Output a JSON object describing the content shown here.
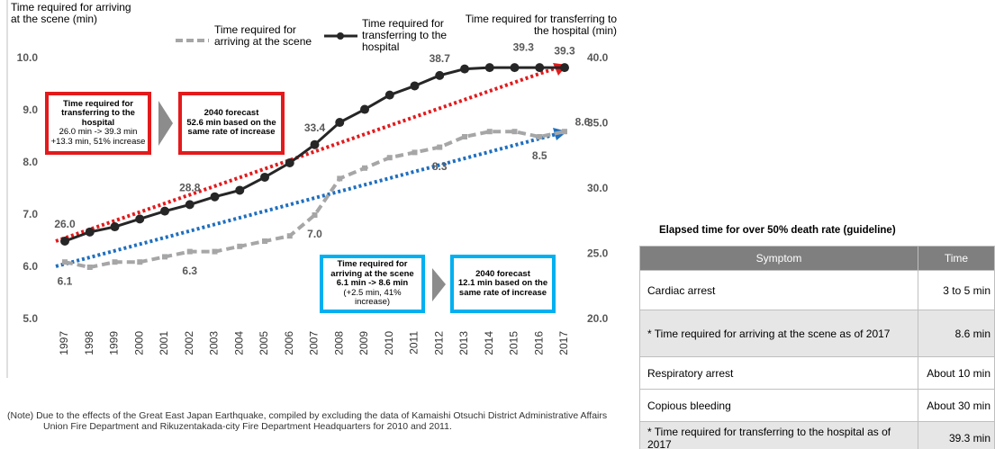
{
  "chart_data": {
    "type": "line",
    "y_axis_label": "Time required for arriving at the scene (min)",
    "y2_axis_label": "Time required for transferring to the hospital (min)",
    "categories": [
      "1997",
      "1998",
      "1999",
      "2000",
      "2001",
      "2002",
      "2003",
      "2004",
      "2005",
      "2006",
      "2007",
      "2008",
      "2009",
      "2010",
      "2011",
      "2012",
      "2013",
      "2014",
      "2015",
      "2016",
      "2017"
    ],
    "series": [
      {
        "name": "Time required for arriving at the scene",
        "color": "#a6a6a6",
        "axis": "y",
        "values": [
          6.1,
          6.0,
          6.1,
          6.1,
          6.2,
          6.3,
          6.3,
          6.4,
          6.5,
          6.6,
          7.0,
          7.7,
          7.9,
          8.1,
          8.2,
          8.3,
          8.5,
          8.6,
          8.6,
          8.5,
          8.6
        ],
        "value_labels": [
          "6.1",
          null,
          null,
          null,
          null,
          "6.3",
          null,
          null,
          null,
          null,
          "7.0",
          null,
          null,
          null,
          null,
          "8.3",
          null,
          null,
          null,
          "8.5",
          "8.6"
        ]
      },
      {
        "name": "Time required for transferring to the hospital",
        "color": "#262626",
        "axis": "y2",
        "values": [
          26.0,
          26.7,
          27.1,
          27.7,
          28.3,
          28.8,
          29.4,
          29.9,
          30.9,
          32.0,
          33.4,
          35.1,
          36.1,
          37.2,
          37.9,
          38.7,
          39.2,
          39.3,
          39.3,
          39.3,
          39.3
        ],
        "value_labels": [
          "26.0",
          null,
          null,
          null,
          null,
          "28.8",
          null,
          null,
          null,
          null,
          "33.4",
          null,
          null,
          null,
          null,
          "38.7",
          null,
          null,
          null,
          "39.3",
          "39.3"
        ]
      }
    ],
    "ylim": [
      5,
      10
    ],
    "yticks": [
      {
        "value": 5,
        "label": "5.0"
      },
      {
        "value": 6,
        "label": "6.0"
      },
      {
        "value": 7,
        "label": "7.0"
      },
      {
        "value": 8,
        "label": "8.0"
      },
      {
        "value": 9,
        "label": "9.0"
      },
      {
        "value": 10,
        "label": "10.0"
      }
    ],
    "y2lim": [
      20,
      40
    ],
    "y2ticks": [
      {
        "value": 20,
        "label": "20.0"
      },
      {
        "value": 25,
        "label": "25.0"
      },
      {
        "value": 30,
        "label": "30.0"
      },
      {
        "value": 35,
        "label": "35.0"
      },
      {
        "value": 40,
        "label": "40.0"
      }
    ],
    "annotations": [
      [
        "Time required for transferring to the hospital",
        "26.0 min -> 39.3 min",
        "+13.3 min, 51% increase"
      ],
      [
        "2040 forecast",
        "52.6 min based on the same rate of increase"
      ],
      [
        "Time required for arriving at the scene",
        "6.1 min -> 8.6 min",
        "(+2.5 min, 41% increase)"
      ],
      [
        "2040 forecast",
        "12.1 min based on the same rate of increase"
      ]
    ],
    "note": "(Note) Due to the effects of the Great East Japan Earthquake, compiled by excluding the data of Kamaishi Otsuchi District Administrative Affairs Union Fire Department and Rikuzentakada-city Fire Department Headquarters for 2010 and 2011."
  },
  "table": {
    "title": "Elapsed time for over 50% death rate (guideline)",
    "header": [
      "Symptom",
      "Time"
    ],
    "rows": [
      [
        "Cardiac arrest",
        "3 to 5 min"
      ],
      [
        "* Time required for arriving at the scene as of 2017",
        "8.6 min"
      ],
      [
        "Respiratory arrest",
        "About 10 min"
      ],
      [
        "Copious bleeding",
        "About 30 min"
      ],
      [
        "* Time required for transferring to the hospital as of 2017",
        "39.3 min"
      ]
    ]
  }
}
